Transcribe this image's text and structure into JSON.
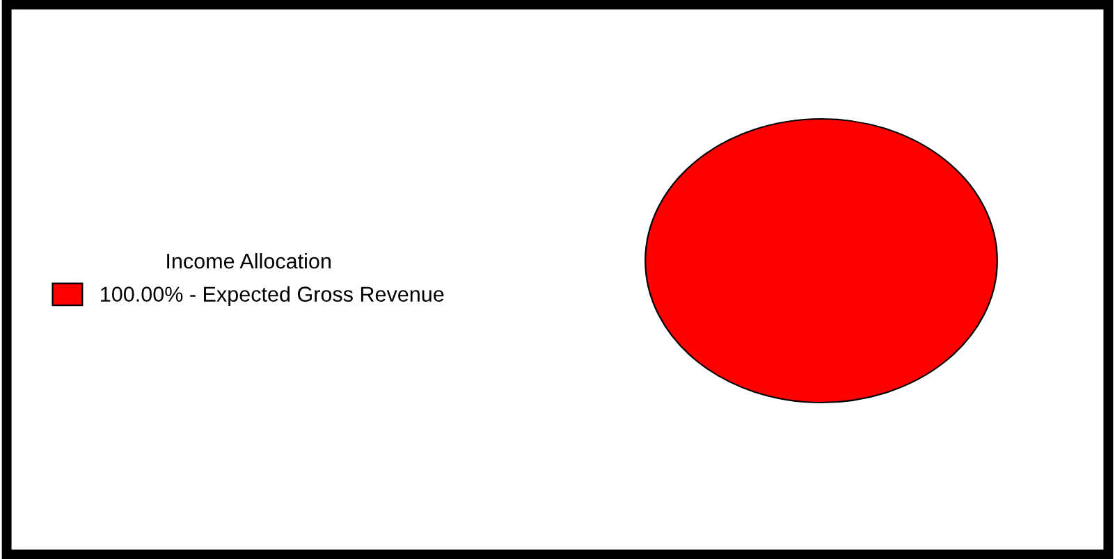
{
  "chart_data": {
    "type": "pie",
    "legend_title": "Income Allocation",
    "categories": [
      "100.00% - Expected Gross Revenue"
    ],
    "values": [
      100
    ],
    "colors": [
      "#ff0000"
    ],
    "legend": "left"
  }
}
